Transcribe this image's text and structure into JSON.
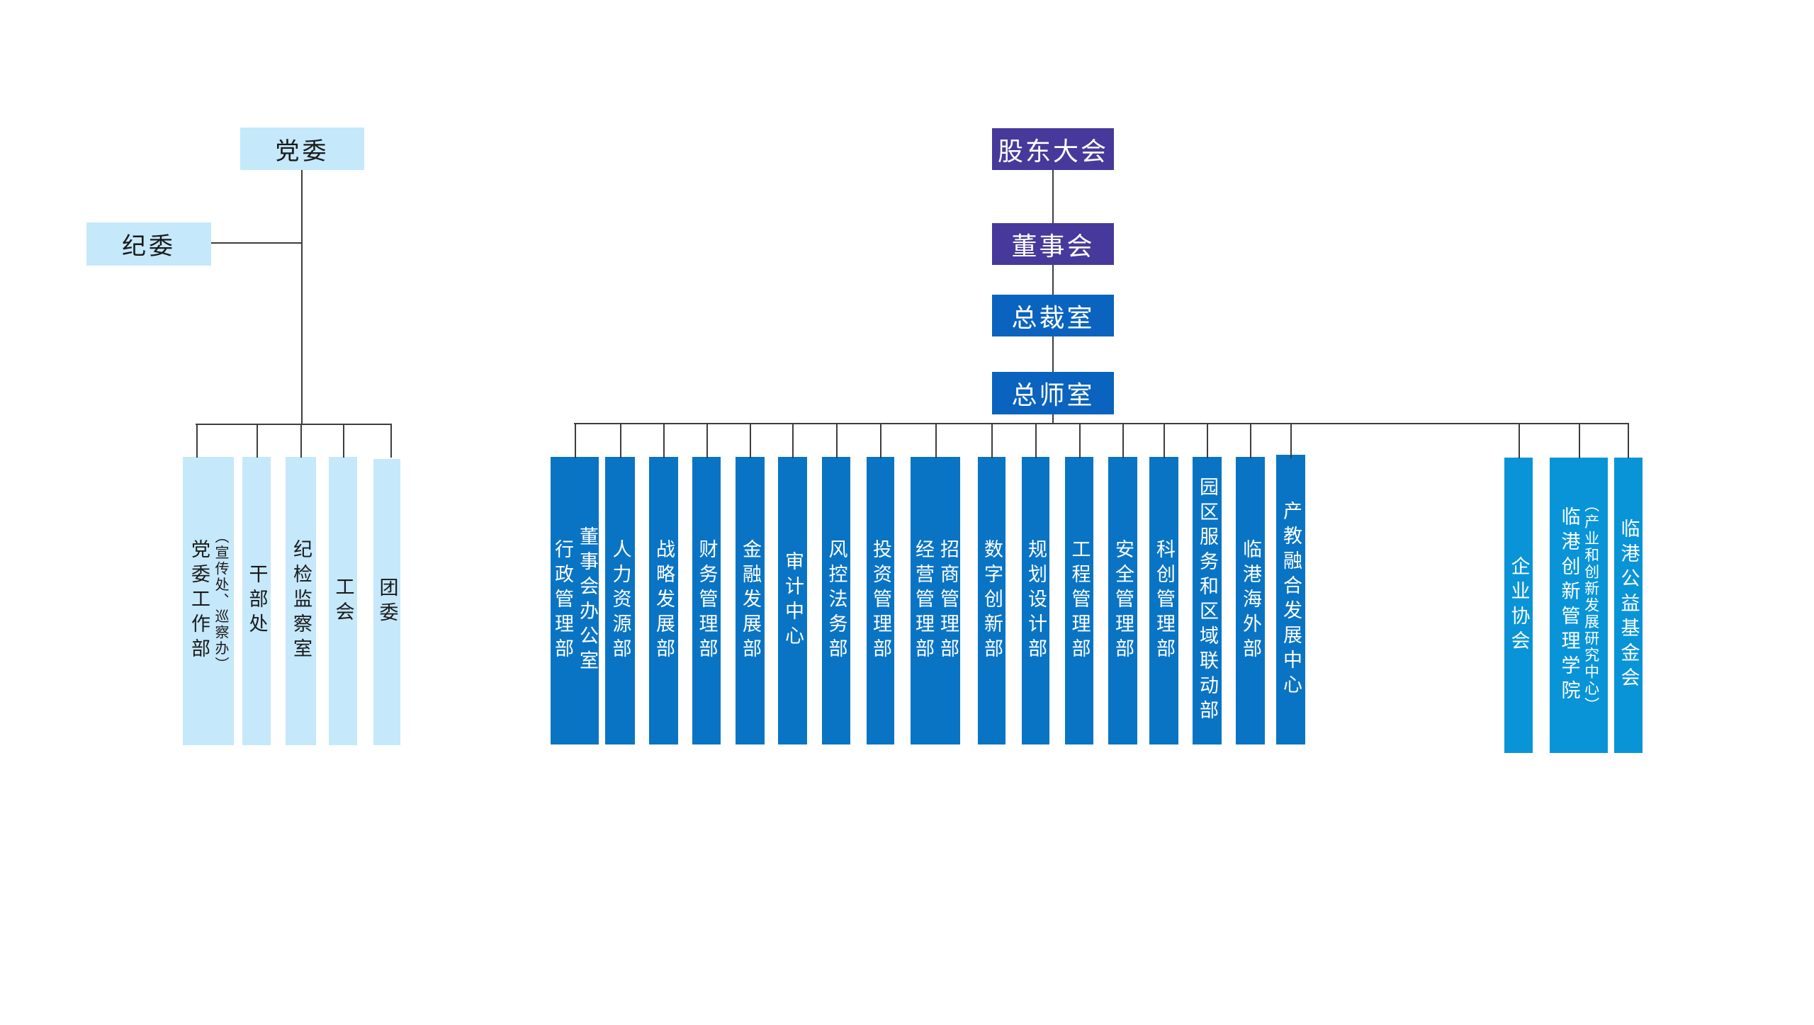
{
  "colors": {
    "background": "#ffffff",
    "purple": "#47399b",
    "chain_blue": "#0a63be",
    "dept_blue": "#0a74c4",
    "affiliate_blue": "#0994d8",
    "light_blue": "#c5e8fb",
    "line": "#3d3d3d",
    "text_dark": "#1a1a1a",
    "text_light": "#ffffff"
  },
  "org": {
    "party": {
      "top": {
        "label": "党委"
      },
      "side": {
        "label": "纪委"
      },
      "departments": [
        {
          "lines": [
            "（宣传处、巡察办）",
            "党委工作部"
          ]
        },
        {
          "lines": [
            "干部处"
          ]
        },
        {
          "lines": [
            "纪检监察室"
          ]
        },
        {
          "lines": [
            "工会"
          ]
        },
        {
          "lines": [
            "团委"
          ]
        }
      ]
    },
    "chain": [
      {
        "label": "股东大会"
      },
      {
        "label": "董事会"
      },
      {
        "label": "总裁室"
      },
      {
        "label": "总师室"
      }
    ],
    "center": {
      "departments": [
        {
          "lines": [
            "董事会办公室",
            "行政管理部"
          ]
        },
        {
          "lines": [
            "人力资源部"
          ]
        },
        {
          "lines": [
            "战略发展部"
          ]
        },
        {
          "lines": [
            "财务管理部"
          ]
        },
        {
          "lines": [
            "金融发展部"
          ]
        },
        {
          "lines": [
            "审计中心"
          ]
        },
        {
          "lines": [
            "风控法务部"
          ]
        },
        {
          "lines": [
            "投资管理部"
          ]
        },
        {
          "lines": [
            "招商管理部",
            "经营管理部"
          ]
        },
        {
          "lines": [
            "数字创新部"
          ]
        },
        {
          "lines": [
            "规划设计部"
          ]
        },
        {
          "lines": [
            "工程管理部"
          ]
        },
        {
          "lines": [
            "安全管理部"
          ]
        },
        {
          "lines": [
            "科创管理部"
          ]
        },
        {
          "lines": [
            "园区服务和区域联动部"
          ]
        },
        {
          "lines": [
            "临港海外部"
          ]
        },
        {
          "lines": [
            "产教融合发展中心"
          ]
        }
      ]
    },
    "affiliates": [
      {
        "lines": [
          "企业协会"
        ]
      },
      {
        "lines": [
          "（产业和创新发展研究中心）",
          "临港创新管理学院"
        ]
      },
      {
        "lines": [
          "临港公益基金会"
        ]
      }
    ]
  }
}
